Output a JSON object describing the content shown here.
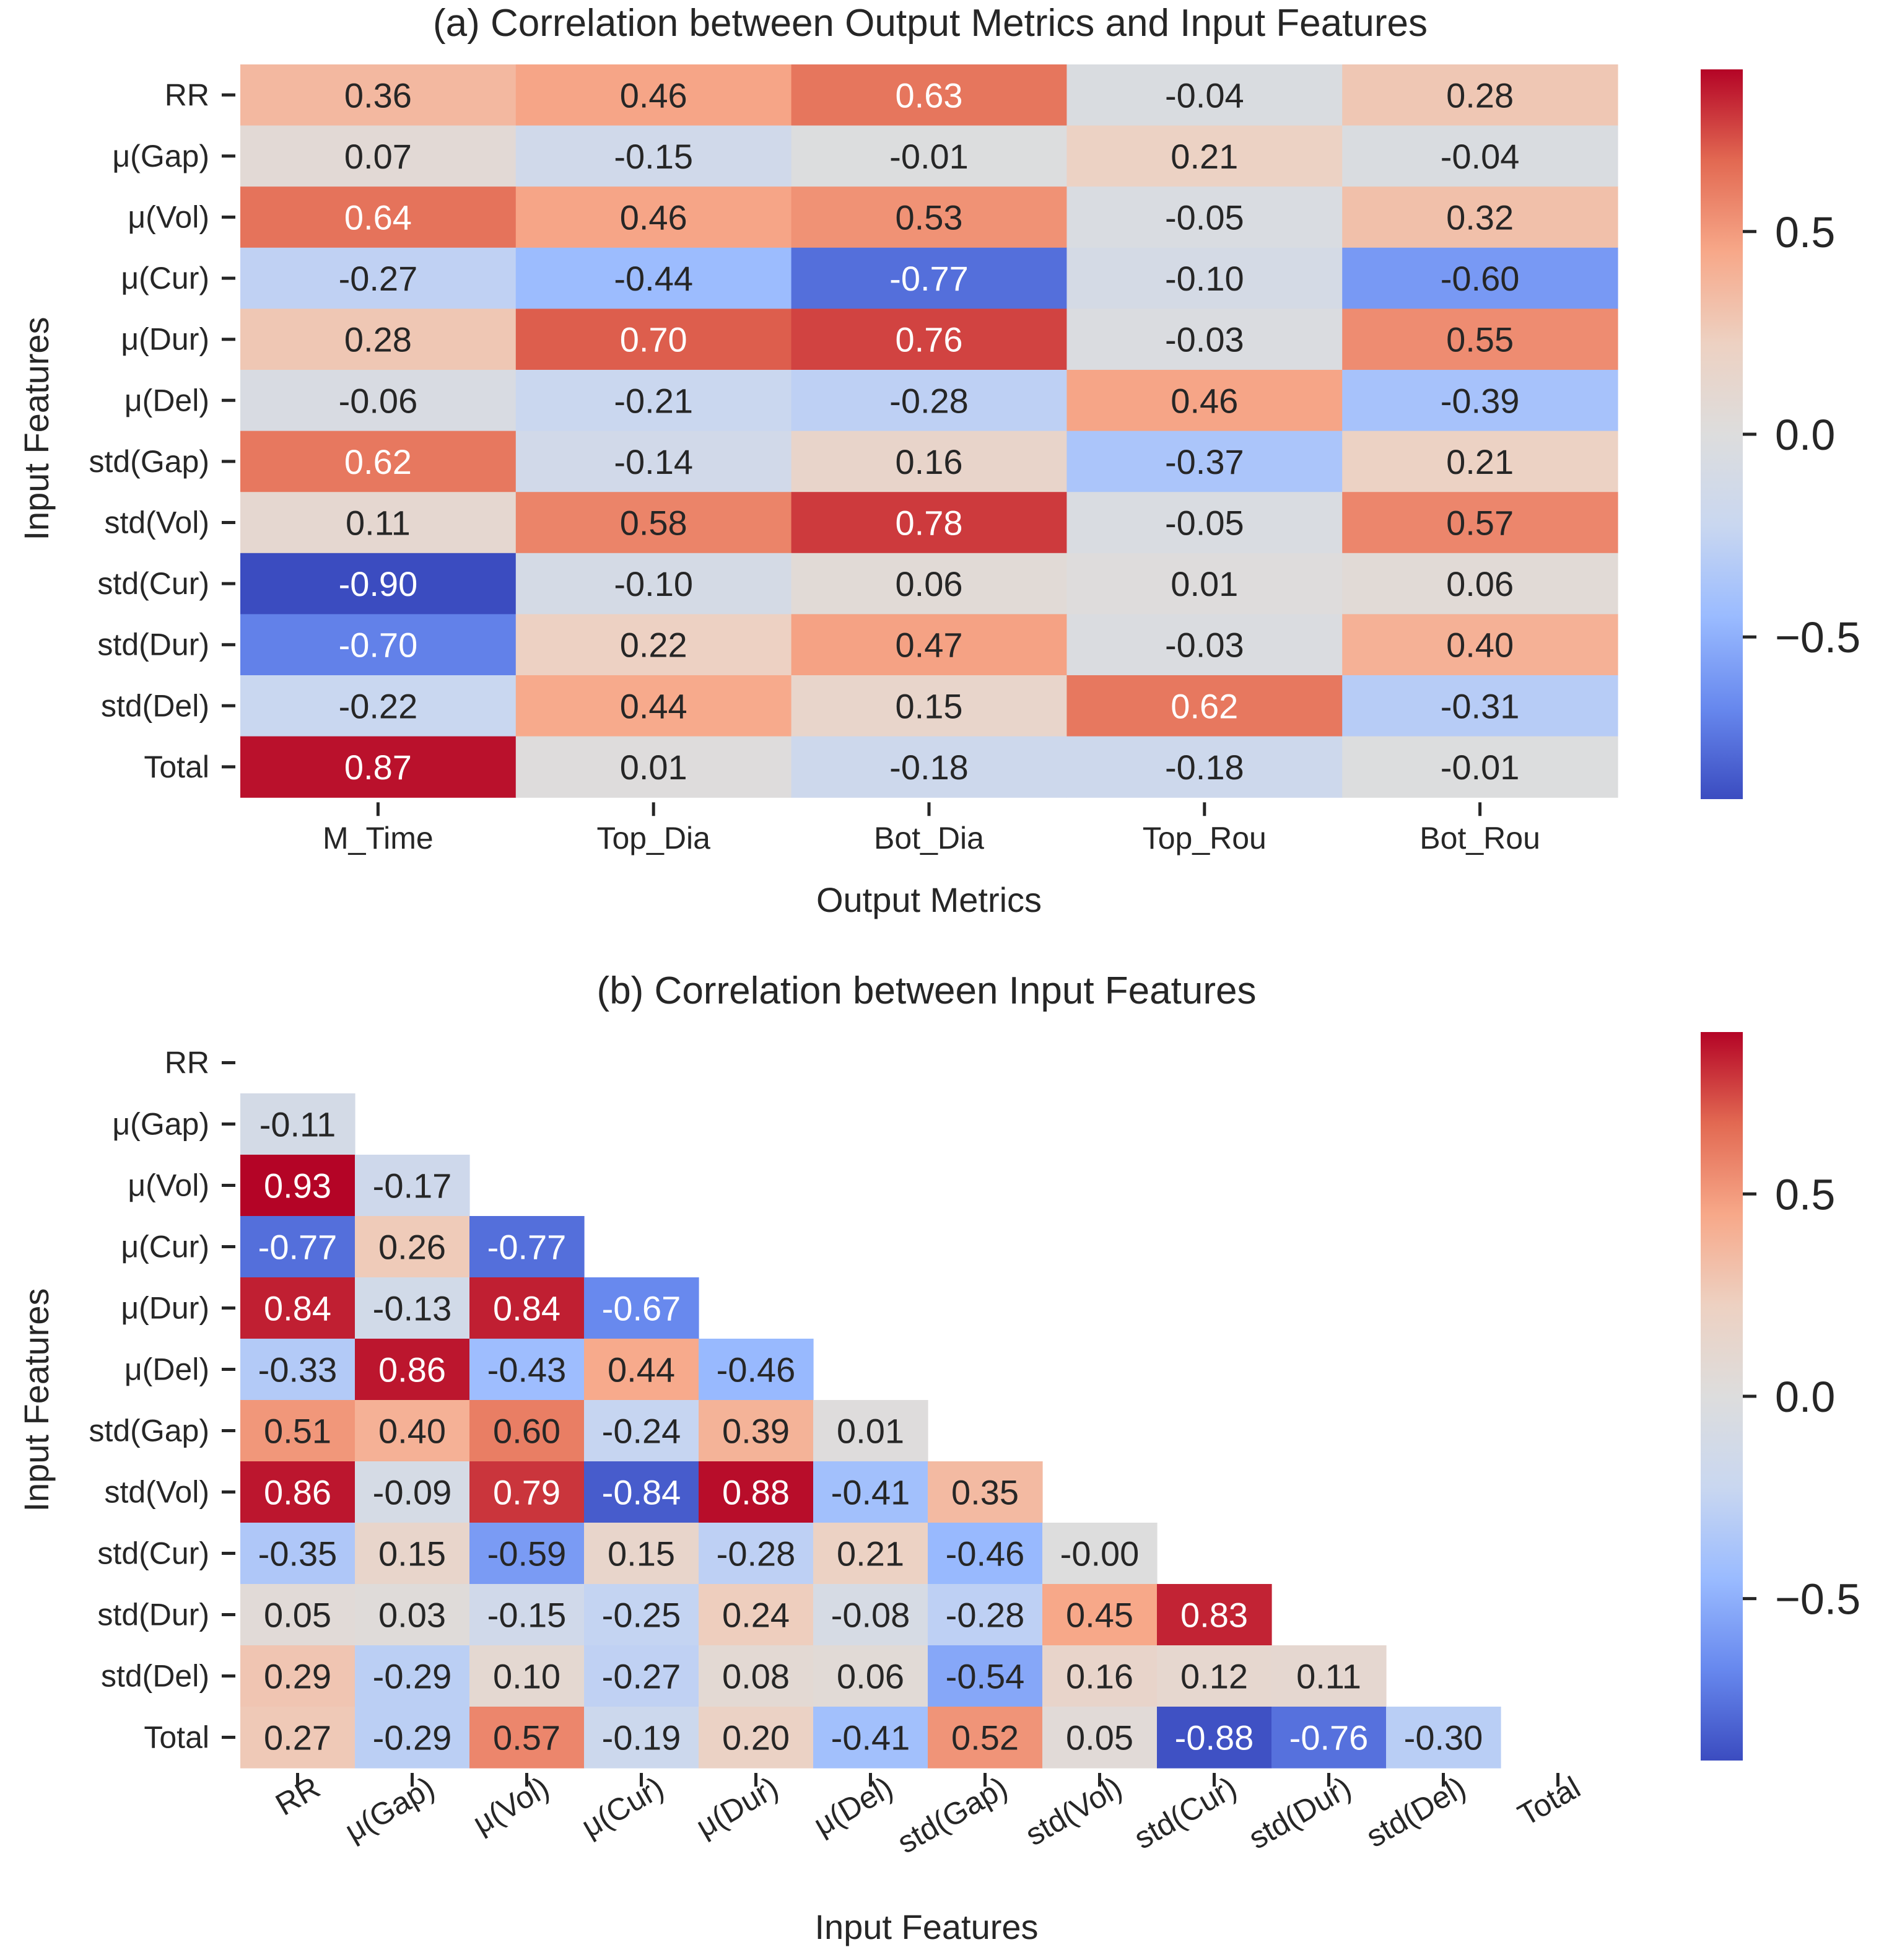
{
  "colormap": {
    "name": "coolwarm",
    "vmin": -0.9,
    "vmax": 0.9,
    "stops": [
      "#3b4cc0",
      "#6788ee",
      "#9abbff",
      "#c9d7f0",
      "#dddddd",
      "#edd1c2",
      "#f7a889",
      "#e26952",
      "#b40426"
    ],
    "text_light": "#ffffff",
    "text_dark": "#262626"
  },
  "chart_data": [
    {
      "type": "heatmap",
      "id": "a",
      "title": "(a) Correlation between Output Metrics and Input Features",
      "xlabel": "Output Metrics",
      "ylabel": "Input Features",
      "columns": [
        "M_Time",
        "Top_Dia",
        "Bot_Dia",
        "Top_Rou",
        "Bot_Rou"
      ],
      "rows": [
        "RR",
        "μ(Gap)",
        "μ(Vol)",
        "μ(Cur)",
        "μ(Dur)",
        "μ(Del)",
        "std(Gap)",
        "std(Vol)",
        "std(Cur)",
        "std(Dur)",
        "std(Del)",
        "Total"
      ],
      "values": [
        [
          0.36,
          0.46,
          0.63,
          -0.04,
          0.28
        ],
        [
          0.07,
          -0.15,
          -0.01,
          0.21,
          -0.04
        ],
        [
          0.64,
          0.46,
          0.53,
          -0.05,
          0.32
        ],
        [
          -0.27,
          -0.44,
          -0.77,
          -0.1,
          -0.6
        ],
        [
          0.28,
          0.7,
          0.76,
          -0.03,
          0.55
        ],
        [
          -0.06,
          -0.21,
          -0.28,
          0.46,
          -0.39
        ],
        [
          0.62,
          -0.14,
          0.16,
          -0.37,
          0.21
        ],
        [
          0.11,
          0.58,
          0.78,
          -0.05,
          0.57
        ],
        [
          -0.9,
          -0.1,
          0.06,
          0.01,
          0.06
        ],
        [
          -0.7,
          0.22,
          0.47,
          -0.03,
          0.4
        ],
        [
          -0.22,
          0.44,
          0.15,
          0.62,
          -0.31
        ],
        [
          0.87,
          0.01,
          -0.18,
          -0.18,
          -0.01
        ]
      ],
      "labels": [
        [
          "0.36",
          "0.46",
          "0.63",
          "-0.04",
          "0.28"
        ],
        [
          "0.07",
          "-0.15",
          "-0.01",
          "0.21",
          "-0.04"
        ],
        [
          "0.64",
          "0.46",
          "0.53",
          "-0.05",
          "0.32"
        ],
        [
          "-0.27",
          "-0.44",
          "-0.77",
          "-0.10",
          "-0.60"
        ],
        [
          "0.28",
          "0.70",
          "0.76",
          "-0.03",
          "0.55"
        ],
        [
          "-0.06",
          "-0.21",
          "-0.28",
          "0.46",
          "-0.39"
        ],
        [
          "0.62",
          "-0.14",
          "0.16",
          "-0.37",
          "0.21"
        ],
        [
          "0.11",
          "0.58",
          "0.78",
          "-0.05",
          "0.57"
        ],
        [
          "-0.90",
          "-0.10",
          "0.06",
          "0.01",
          "0.06"
        ],
        [
          "-0.70",
          "0.22",
          "0.47",
          "-0.03",
          "0.40"
        ],
        [
          "-0.22",
          "0.44",
          "0.15",
          "0.62",
          "-0.31"
        ],
        [
          "0.87",
          "0.01",
          "-0.18",
          "-0.18",
          "-0.01"
        ]
      ],
      "colorbar": {
        "ticks": [
          0.5,
          0.0,
          -0.5
        ],
        "tick_labels": [
          "0.5",
          "0.0",
          "−0.5"
        ],
        "range": [
          -0.9,
          0.9
        ]
      },
      "xtick_rotation": 0
    },
    {
      "type": "heatmap",
      "id": "b",
      "title": "(b) Correlation between Input Features",
      "xlabel": "Input Features",
      "ylabel": "Input Features",
      "columns": [
        "RR",
        "μ(Gap)",
        "μ(Vol)",
        "μ(Cur)",
        "μ(Dur)",
        "μ(Del)",
        "std(Gap)",
        "std(Vol)",
        "std(Cur)",
        "std(Dur)",
        "std(Del)",
        "Total"
      ],
      "rows": [
        "RR",
        "μ(Gap)",
        "μ(Vol)",
        "μ(Cur)",
        "μ(Dur)",
        "μ(Del)",
        "std(Gap)",
        "std(Vol)",
        "std(Cur)",
        "std(Dur)",
        "std(Del)",
        "Total"
      ],
      "mask": "upper-including-diagonal",
      "values": [
        [],
        [
          -0.11
        ],
        [
          0.93,
          -0.17
        ],
        [
          -0.77,
          0.26,
          -0.77
        ],
        [
          0.84,
          -0.13,
          0.84,
          -0.67
        ],
        [
          -0.33,
          0.86,
          -0.43,
          0.44,
          -0.46
        ],
        [
          0.51,
          0.4,
          0.6,
          -0.24,
          0.39,
          0.01
        ],
        [
          0.86,
          -0.09,
          0.79,
          -0.84,
          0.88,
          -0.41,
          0.35
        ],
        [
          -0.35,
          0.15,
          -0.59,
          0.15,
          -0.28,
          0.21,
          -0.46,
          -0.0
        ],
        [
          0.05,
          0.03,
          -0.15,
          -0.25,
          0.24,
          -0.08,
          -0.28,
          0.45,
          0.83
        ],
        [
          0.29,
          -0.29,
          0.1,
          -0.27,
          0.08,
          0.06,
          -0.54,
          0.16,
          0.12,
          0.11
        ],
        [
          0.27,
          -0.29,
          0.57,
          -0.19,
          0.2,
          -0.41,
          0.52,
          0.05,
          -0.88,
          -0.76,
          -0.3
        ]
      ],
      "labels": [
        [],
        [
          "-0.11"
        ],
        [
          "0.93",
          "-0.17"
        ],
        [
          "-0.77",
          "0.26",
          "-0.77"
        ],
        [
          "0.84",
          "-0.13",
          "0.84",
          "-0.67"
        ],
        [
          "-0.33",
          "0.86",
          "-0.43",
          "0.44",
          "-0.46"
        ],
        [
          "0.51",
          "0.40",
          "0.60",
          "-0.24",
          "0.39",
          "0.01"
        ],
        [
          "0.86",
          "-0.09",
          "0.79",
          "-0.84",
          "0.88",
          "-0.41",
          "0.35"
        ],
        [
          "-0.35",
          "0.15",
          "-0.59",
          "0.15",
          "-0.28",
          "0.21",
          "-0.46",
          "-0.00"
        ],
        [
          "0.05",
          "0.03",
          "-0.15",
          "-0.25",
          "0.24",
          "-0.08",
          "-0.28",
          "0.45",
          "0.83"
        ],
        [
          "0.29",
          "-0.29",
          "0.10",
          "-0.27",
          "0.08",
          "0.06",
          "-0.54",
          "0.16",
          "0.12",
          "0.11"
        ],
        [
          "0.27",
          "-0.29",
          "0.57",
          "-0.19",
          "0.20",
          "-0.41",
          "0.52",
          "0.05",
          "-0.88",
          "-0.76",
          "-0.30"
        ]
      ],
      "colorbar": {
        "ticks": [
          0.5,
          0.0,
          -0.5
        ],
        "tick_labels": [
          "0.5",
          "0.0",
          "−0.5"
        ],
        "range": [
          -0.9,
          0.9
        ]
      },
      "xtick_rotation": -30
    }
  ]
}
